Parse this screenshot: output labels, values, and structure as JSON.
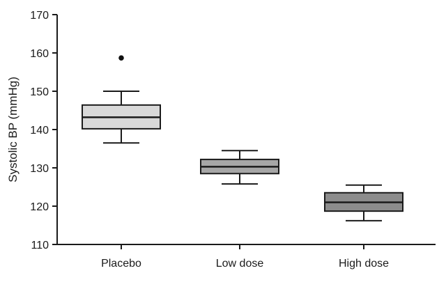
{
  "chart_data": {
    "type": "box",
    "ylabel": "Systolic BP (mmHg)",
    "xlabel": "",
    "ylim": [
      110,
      170
    ],
    "yticks": [
      110,
      120,
      130,
      140,
      150,
      160,
      170
    ],
    "grid": false,
    "categories": [
      "Placebo",
      "Low dose",
      "High dose"
    ],
    "boxes": [
      {
        "category": "Placebo",
        "whisker_low": 136.5,
        "q1": 140.2,
        "median": 143.2,
        "q3": 146.4,
        "whisker_high": 150.0,
        "outliers": [
          158.7
        ],
        "color": "#d9d9d9"
      },
      {
        "category": "Low dose",
        "whisker_low": 125.8,
        "q1": 128.5,
        "median": 130.3,
        "q3": 132.2,
        "whisker_high": 134.5,
        "outliers": [],
        "color": "#a6a6a6"
      },
      {
        "category": "High dose",
        "whisker_low": 116.2,
        "q1": 118.7,
        "median": 121.0,
        "q3": 123.5,
        "whisker_high": 125.5,
        "outliers": [],
        "color": "#8c8c8c"
      }
    ]
  }
}
